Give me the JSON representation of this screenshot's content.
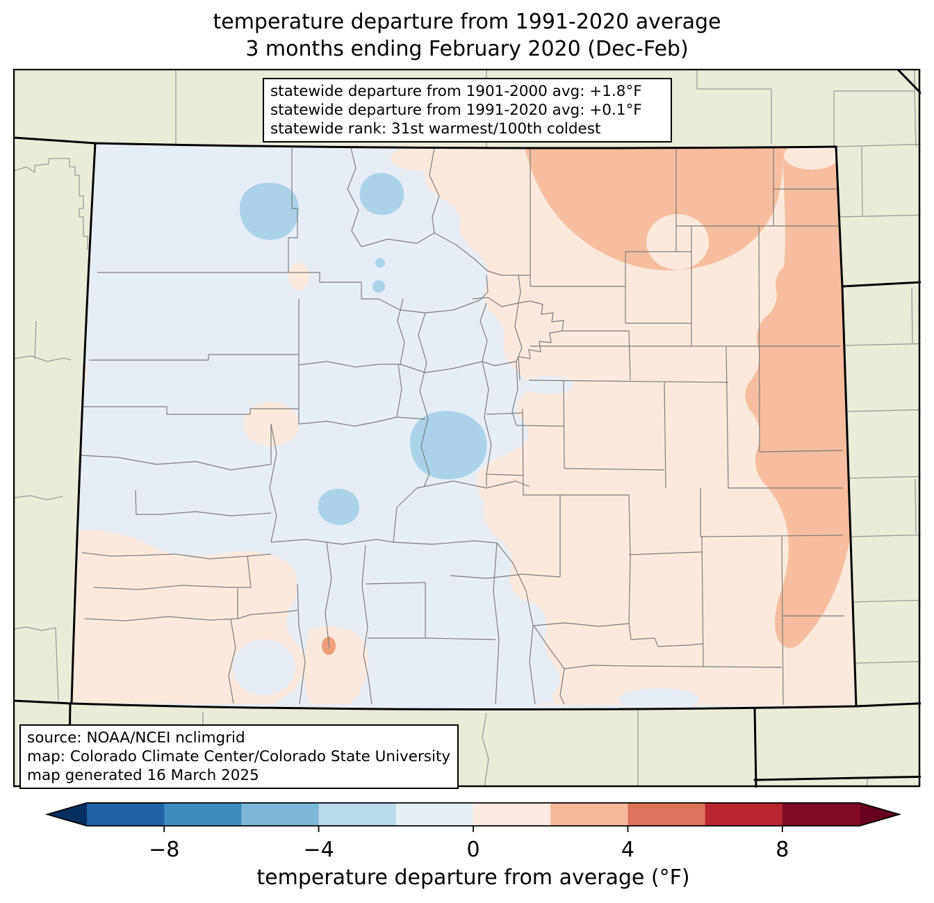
{
  "title": {
    "line1": "temperature departure from 1991-2020 average",
    "line2": "3 months ending February 2020 (Dec-Feb)"
  },
  "stats_box": {
    "lines": [
      "statewide departure from 1901-2000 avg: +1.8°F",
      "statewide departure from 1991-2020 avg: +0.1°F",
      "statewide rank: 31st warmest/100th coldest"
    ]
  },
  "source_box": {
    "lines": [
      "source: NOAA/NCEI nclimgrid",
      "map: Colorado Climate Center/Colorado State University",
      "map generated 16 March 2025"
    ]
  },
  "colorbar": {
    "label": "temperature departure from average (°F)",
    "range": [
      -10,
      10
    ],
    "segment_colors": [
      "#1f61a5",
      "#3d8bbf",
      "#7cb7d7",
      "#bad9e9",
      "#e6eff4",
      "#faeae1",
      "#f7b99b",
      "#de735b",
      "#b92531",
      "#7f0b26"
    ],
    "under_color": "#053061",
    "over_color": "#67001f",
    "ticks": [
      {
        "value": -8,
        "label": "−8"
      },
      {
        "value": -4,
        "label": "−4"
      },
      {
        "value": 0,
        "label": "0"
      },
      {
        "value": 4,
        "label": "4"
      },
      {
        "value": 8,
        "label": "8"
      }
    ]
  },
  "map": {
    "region": "Colorado with county boundaries and surrounding states",
    "colors": {
      "outside_states": "#ebebda",
      "departure_neg0_2": "#e7edf5",
      "departure_neg2_4": "#abd2e7",
      "departure_pos0_2": "#fbe9de",
      "departure_pos2_4": "#f7bd9e",
      "departure_pos4_6_spot": "#f09e78",
      "county_line": "#7d7d7d",
      "outside_county_line": "#9a9a9a",
      "state_line": "#000000"
    }
  }
}
